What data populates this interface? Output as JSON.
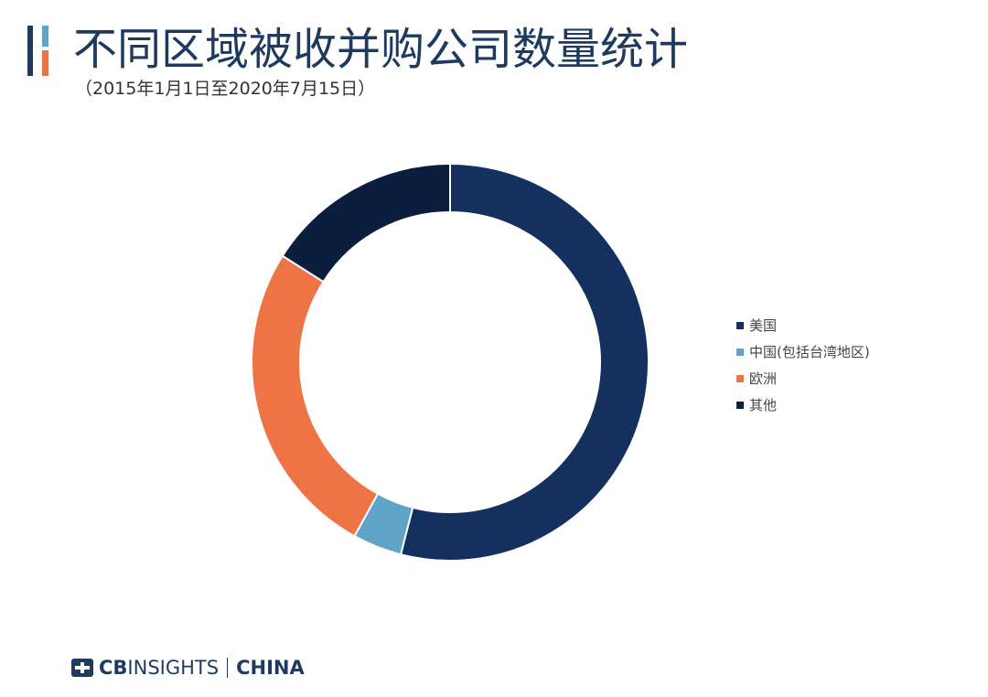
{
  "header": {
    "title": "不同区域被收并购公司数量统计",
    "subtitle": "（2015年1月1日至2020年7月15日）"
  },
  "chart_data": {
    "type": "pie",
    "donut": true,
    "legend_position": "right",
    "start_angle_deg": 0,
    "direction": "clockwise",
    "series": [
      {
        "name": "美国",
        "value": 54,
        "color": "#13305e"
      },
      {
        "name": "中国(包括台湾地区)",
        "value": 4,
        "color": "#5fa3c6"
      },
      {
        "name": "欧洲",
        "value": 26,
        "color": "#ee7445"
      },
      {
        "name": "其他",
        "value": 16,
        "color": "#0b1e3d"
      }
    ]
  },
  "footer": {
    "brand_cb": "CB",
    "brand_insights": "INSIGHTS",
    "brand_china": "CHINA"
  },
  "colors": {
    "brand": "#1e3a5f",
    "accent_blue": "#5fa3c6",
    "accent_orange": "#e8734a"
  }
}
